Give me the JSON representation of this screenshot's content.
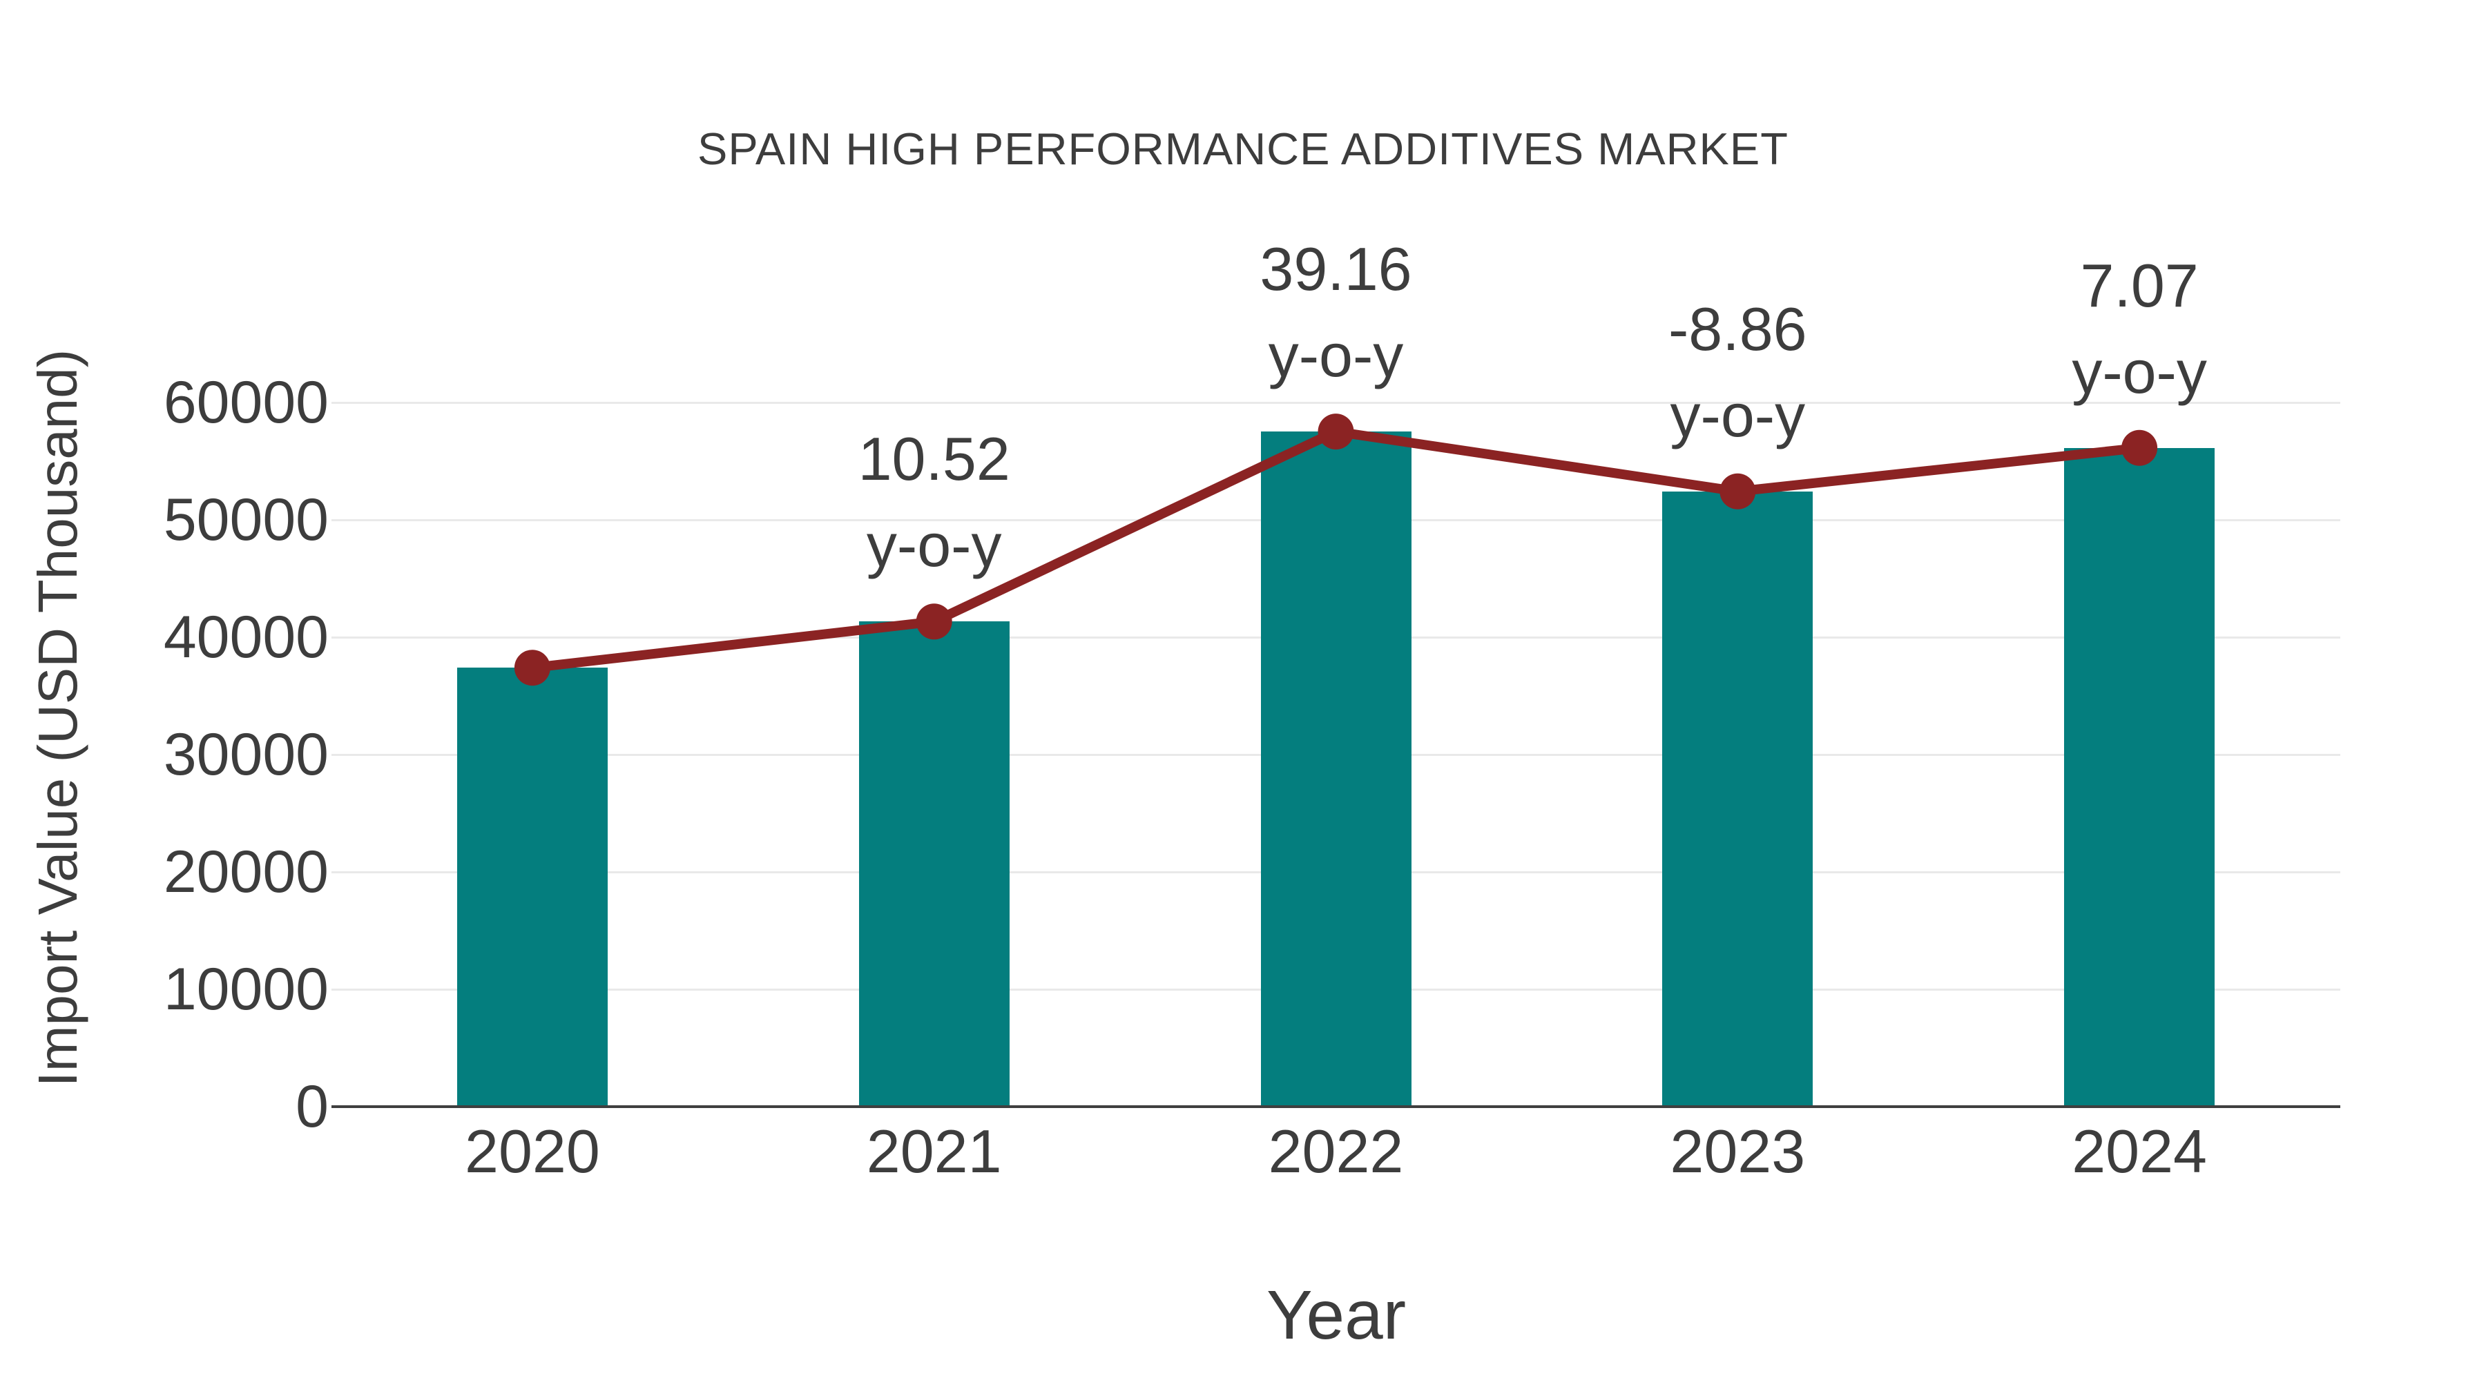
{
  "page": {
    "background": "#ffffff"
  },
  "chart_data": {
    "type": "bar+line",
    "title": "SPAIN HIGH PERFORMANCE ADDITIVES MARKET",
    "xlabel": "Year",
    "ylabel": "Import Value (USD Thousand)",
    "categories": [
      "2020",
      "2021",
      "2022",
      "2023",
      "2024"
    ],
    "series": [
      {
        "name": "Import Value (USD Thousand)",
        "type": "bar",
        "values": [
          37400,
          41335,
          57520,
          52425,
          56130
        ],
        "color": "#047e7e"
      },
      {
        "name": "y-o-y growth (%)",
        "type": "line",
        "values": [
          null,
          10.52,
          39.16,
          -8.86,
          7.07
        ],
        "color": "#8B2323",
        "note": "line with round markers drawn through the bar tops"
      }
    ],
    "annotations": [
      {
        "category": "2021",
        "line1": "10.52",
        "line2": "y-o-y"
      },
      {
        "category": "2022",
        "line1": "39.16",
        "line2": "y-o-y"
      },
      {
        "category": "2023",
        "line1": "-8.86",
        "line2": "y-o-y"
      },
      {
        "category": "2024",
        "line1": "7.07",
        "line2": "y-o-y"
      }
    ],
    "ylim": [
      0,
      60000
    ],
    "ytick_step": 10000,
    "yticks": [
      0,
      10000,
      20000,
      30000,
      40000,
      50000,
      60000
    ],
    "grid": "horizontal",
    "legend": "none",
    "colors": {
      "bar": "#047e7e",
      "line": "#8B2323",
      "text": "#3d3d3d",
      "gridline": "#e9e9e9",
      "axis": "#3f3f3f",
      "background": "#ffffff"
    }
  }
}
